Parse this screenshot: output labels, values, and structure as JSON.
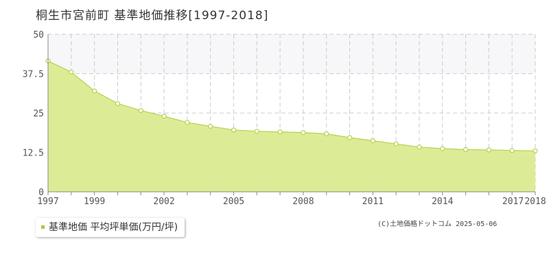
{
  "title": "桐生市宮前町 基準地価推移[1997-2018]",
  "legend": {
    "label": "基準地価 平均坪単価(万円/坪)"
  },
  "credit": "(C)土地価格ドットコム 2025-05-06",
  "colors": {
    "fill": "#dcec96",
    "line": "#b4d24a",
    "band": "#f7f6f8",
    "grid": "#cccccc",
    "marker": "#ffffff"
  },
  "chart_data": {
    "type": "area",
    "title": "桐生市宮前町 基準地価推移[1997-2018]",
    "xlabel": "",
    "ylabel": "",
    "x": [
      1997,
      1998,
      1999,
      2000,
      2001,
      2002,
      2003,
      2004,
      2005,
      2006,
      2007,
      2008,
      2009,
      2010,
      2011,
      2012,
      2013,
      2014,
      2015,
      2016,
      2017,
      2018
    ],
    "series": [
      {
        "name": "基準地価 平均坪単価(万円/坪)",
        "values": [
          41.5,
          38.0,
          32.0,
          28.0,
          25.8,
          24.0,
          22.0,
          20.8,
          19.6,
          19.2,
          19.0,
          18.8,
          18.4,
          17.2,
          16.2,
          15.2,
          14.2,
          13.7,
          13.4,
          13.3,
          13.1,
          13.0
        ]
      }
    ],
    "ylim": [
      0,
      50
    ],
    "yticks": [
      "0",
      "12.5",
      "25",
      "37.5",
      "50"
    ],
    "xticks": [
      "1997",
      "1999",
      "2002",
      "2005",
      "2008",
      "2011",
      "2014",
      "2017",
      "2018"
    ],
    "grid": true,
    "legend": "bottom-left"
  }
}
